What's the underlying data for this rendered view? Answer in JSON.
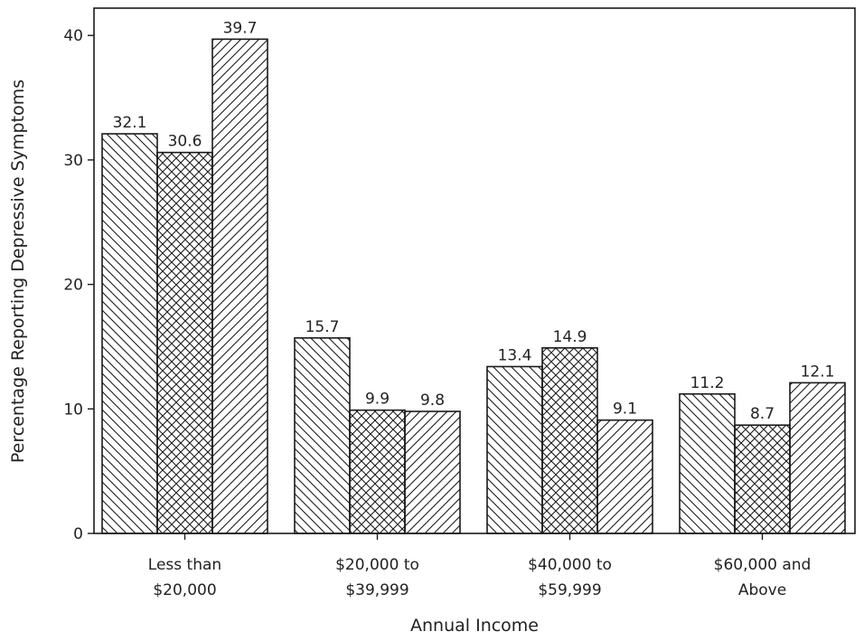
{
  "chart_data": {
    "type": "bar",
    "title": "",
    "xlabel": "Annual Income",
    "ylabel": "Percentage Reporting Depressive Symptoms",
    "categories": [
      [
        "Less than",
        "$20,000"
      ],
      [
        "$20,000 to",
        "$39,999"
      ],
      [
        "$40,000 to",
        "$59,999"
      ],
      [
        "$60,000 and",
        "Above"
      ]
    ],
    "series": [
      {
        "name": "series-1",
        "pattern": "diagonal-down",
        "values": [
          32.1,
          15.7,
          13.4,
          11.2
        ]
      },
      {
        "name": "series-2",
        "pattern": "crosshatch",
        "values": [
          30.6,
          9.9,
          14.9,
          8.7
        ]
      },
      {
        "name": "series-3",
        "pattern": "diagonal-up",
        "values": [
          39.7,
          9.8,
          9.1,
          12.1
        ]
      }
    ],
    "ylim": [
      0,
      42
    ],
    "yticks": [
      0,
      10,
      20,
      30,
      40
    ],
    "grid": false,
    "legend": "none",
    "colors": {
      "bar_fill": "#ffffff",
      "bar_stroke": "#1a1a1a",
      "axis": "#1a1a1a"
    }
  }
}
